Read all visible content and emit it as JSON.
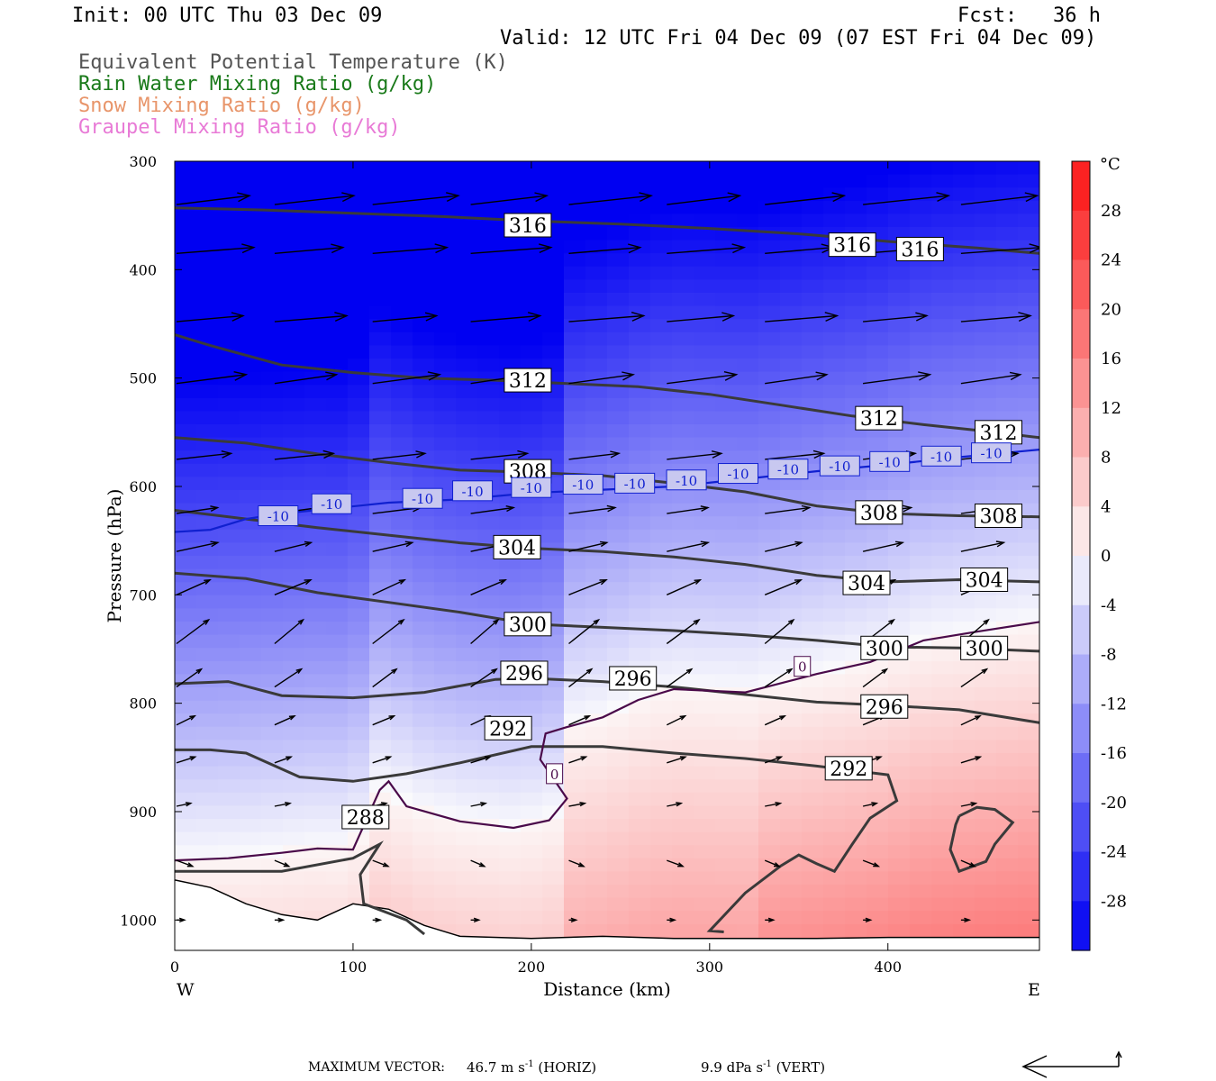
{
  "header": {
    "init": "Init: 00 UTC Thu 03 Dec 09",
    "fcst": "Fcst:   36 h",
    "valid": "Valid: 12 UTC Fri 04 Dec 09 (07 EST Fri 04 Dec 09)",
    "fields": [
      {
        "label": "Equivalent Potential Temperature (K)",
        "color": "#555555"
      },
      {
        "label": "Rain Water Mixing Ratio (g/kg)",
        "color": "#1a7a1a"
      },
      {
        "label": "Snow Mixing Ratio (g/kg)",
        "color": "#e8956a"
      },
      {
        "label": "Graupel Mixing Ratio (g/kg)",
        "color": "#e87ad6"
      }
    ]
  },
  "chart_data": {
    "type": "heatmap",
    "xlabel": "Distance (km)",
    "ylabel": "Pressure (hPa)",
    "xlim": [
      0,
      485
    ],
    "ylim": [
      1028,
      300
    ],
    "x_ticks": [
      0,
      100,
      200,
      300,
      400
    ],
    "y_ticks": [
      300,
      400,
      500,
      600,
      700,
      800,
      900,
      1000
    ],
    "x_end_labels": {
      "left": "W",
      "right": "E"
    },
    "colorbar": {
      "unit": "°C",
      "range": [
        -32,
        32
      ],
      "ticks": [
        28,
        24,
        20,
        16,
        12,
        8,
        4,
        0,
        -4,
        -8,
        -12,
        -16,
        -20,
        -24,
        -28
      ]
    },
    "theta_e_contours": [
      {
        "label": "316",
        "points": [
          [
            0,
            343
          ],
          [
            50,
            345
          ],
          [
            100,
            348
          ],
          [
            150,
            351
          ],
          [
            200,
            355
          ],
          [
            250,
            358
          ],
          [
            300,
            362
          ],
          [
            350,
            367
          ],
          [
            400,
            374
          ],
          [
            450,
            380
          ],
          [
            485,
            385
          ]
        ],
        "labels": [
          [
            198,
            359
          ],
          [
            380,
            377
          ],
          [
            418,
            381
          ]
        ]
      },
      {
        "label": "312",
        "points": [
          [
            0,
            460
          ],
          [
            20,
            470
          ],
          [
            60,
            488
          ],
          [
            100,
            495
          ],
          [
            140,
            500
          ],
          [
            180,
            502
          ],
          [
            220,
            505
          ],
          [
            260,
            508
          ],
          [
            300,
            515
          ],
          [
            340,
            525
          ],
          [
            380,
            535
          ],
          [
            420,
            543
          ],
          [
            460,
            550
          ],
          [
            485,
            555
          ]
        ],
        "labels": [
          [
            198,
            502
          ],
          [
            395,
            537
          ],
          [
            462,
            550
          ]
        ]
      },
      {
        "label": "308",
        "points": [
          [
            0,
            555
          ],
          [
            40,
            560
          ],
          [
            80,
            570
          ],
          [
            120,
            578
          ],
          [
            160,
            585
          ],
          [
            200,
            587
          ],
          [
            240,
            590
          ],
          [
            280,
            597
          ],
          [
            320,
            605
          ],
          [
            360,
            618
          ],
          [
            400,
            625
          ],
          [
            440,
            627
          ],
          [
            485,
            628
          ]
        ],
        "labels": [
          [
            198,
            586
          ],
          [
            395,
            624
          ],
          [
            462,
            627
          ]
        ]
      },
      {
        "label": "304",
        "points": [
          [
            0,
            622
          ],
          [
            40,
            630
          ],
          [
            80,
            638
          ],
          [
            120,
            645
          ],
          [
            160,
            652
          ],
          [
            200,
            657
          ],
          [
            240,
            660
          ],
          [
            280,
            665
          ],
          [
            320,
            672
          ],
          [
            360,
            682
          ],
          [
            400,
            688
          ],
          [
            440,
            686
          ],
          [
            485,
            688
          ]
        ],
        "labels": [
          [
            192,
            656
          ],
          [
            388,
            689
          ],
          [
            454,
            686
          ]
        ]
      },
      {
        "label": "300",
        "points": [
          [
            0,
            680
          ],
          [
            40,
            685
          ],
          [
            80,
            698
          ],
          [
            120,
            707
          ],
          [
            160,
            716
          ],
          [
            200,
            727
          ],
          [
            240,
            730
          ],
          [
            280,
            733
          ],
          [
            320,
            737
          ],
          [
            360,
            742
          ],
          [
            400,
            748
          ],
          [
            440,
            749
          ],
          [
            485,
            752
          ]
        ],
        "labels": [
          [
            198,
            727
          ],
          [
            398,
            749
          ],
          [
            454,
            749
          ]
        ]
      },
      {
        "label": "296",
        "points": [
          [
            0,
            782
          ],
          [
            30,
            780
          ],
          [
            60,
            793
          ],
          [
            100,
            795
          ],
          [
            140,
            790
          ],
          [
            180,
            778
          ],
          [
            200,
            777
          ],
          [
            240,
            780
          ],
          [
            280,
            785
          ],
          [
            320,
            792
          ],
          [
            360,
            799
          ],
          [
            400,
            802
          ],
          [
            440,
            806
          ],
          [
            485,
            818
          ]
        ],
        "labels": [
          [
            196,
            772
          ],
          [
            257,
            777
          ],
          [
            398,
            803
          ]
        ]
      },
      {
        "label": "292",
        "points": [
          [
            0,
            843
          ],
          [
            20,
            843
          ],
          [
            40,
            846
          ],
          [
            70,
            868
          ],
          [
            100,
            872
          ],
          [
            130,
            865
          ],
          [
            160,
            855
          ],
          [
            200,
            840
          ],
          [
            240,
            840
          ],
          [
            280,
            846
          ],
          [
            320,
            851
          ],
          [
            360,
            858
          ],
          [
            400,
            866
          ],
          [
            405,
            890
          ],
          [
            390,
            906
          ],
          [
            380,
            930
          ],
          [
            370,
            955
          ],
          [
            360,
            948
          ],
          [
            350,
            940
          ],
          [
            340,
            950
          ],
          [
            320,
            975
          ],
          [
            300,
            1010
          ],
          [
            308,
            1011
          ]
        ],
        "labels": [
          [
            187,
            823
          ],
          [
            378,
            860
          ]
        ]
      },
      {
        "label": "288",
        "points": [
          [
            0,
            955
          ],
          [
            60,
            955
          ],
          [
            100,
            943
          ],
          [
            115,
            930
          ],
          [
            104,
            958
          ],
          [
            106,
            985
          ],
          [
            130,
            1000
          ],
          [
            140,
            1013
          ]
        ],
        "labels": [
          [
            107,
            905
          ]
        ]
      },
      {
        "label": "",
        "points": [
          [
            440,
            904
          ],
          [
            450,
            896
          ],
          [
            460,
            898
          ],
          [
            470,
            910
          ],
          [
            460,
            930
          ],
          [
            455,
            946
          ],
          [
            440,
            955
          ],
          [
            435,
            935
          ],
          [
            438,
            912
          ],
          [
            440,
            904
          ]
        ],
        "labels": []
      }
    ],
    "zero_isotherm": {
      "label": "0",
      "points": [
        [
          0,
          945
        ],
        [
          30,
          943
        ],
        [
          60,
          938
        ],
        [
          80,
          934
        ],
        [
          100,
          935
        ],
        [
          115,
          880
        ],
        [
          120,
          872
        ],
        [
          130,
          895
        ],
        [
          160,
          909
        ],
        [
          190,
          915
        ],
        [
          210,
          908
        ],
        [
          220,
          888
        ],
        [
          205,
          852
        ],
        [
          208,
          828
        ],
        [
          220,
          822
        ],
        [
          240,
          813
        ],
        [
          260,
          797
        ],
        [
          280,
          787
        ],
        [
          320,
          790
        ],
        [
          360,
          773
        ],
        [
          390,
          762
        ],
        [
          420,
          742
        ],
        [
          450,
          734
        ],
        [
          485,
          725
        ]
      ],
      "labels": [
        [
          213,
          865
        ],
        [
          352,
          766
        ]
      ]
    },
    "minus10_isotherm": {
      "label": "-10",
      "points": [
        [
          0,
          642
        ],
        [
          20,
          640
        ],
        [
          40,
          630
        ],
        [
          60,
          625
        ],
        [
          90,
          620
        ],
        [
          120,
          615
        ],
        [
          160,
          612
        ],
        [
          200,
          606
        ],
        [
          240,
          603
        ],
        [
          280,
          600
        ],
        [
          320,
          593
        ],
        [
          360,
          586
        ],
        [
          400,
          580
        ],
        [
          440,
          573
        ],
        [
          485,
          566
        ]
      ],
      "labels": [
        [
          58,
          627
        ],
        [
          88,
          616
        ],
        [
          139,
          611
        ],
        [
          167,
          604
        ],
        [
          200,
          601
        ],
        [
          229,
          598
        ],
        [
          258,
          597
        ],
        [
          287,
          594
        ],
        [
          316,
          588
        ],
        [
          344,
          584
        ],
        [
          373,
          581
        ],
        [
          401,
          577
        ],
        [
          430,
          572
        ],
        [
          458,
          569
        ]
      ]
    },
    "terrain_line": [
      [
        0,
        963
      ],
      [
        20,
        970
      ],
      [
        40,
        985
      ],
      [
        60,
        995
      ],
      [
        80,
        1000
      ],
      [
        100,
        985
      ],
      [
        120,
        990
      ],
      [
        140,
        1005
      ],
      [
        160,
        1015
      ],
      [
        200,
        1017
      ],
      [
        240,
        1015
      ],
      [
        280,
        1017
      ],
      [
        320,
        1017
      ],
      [
        360,
        1017
      ],
      [
        400,
        1016
      ],
      [
        440,
        1016
      ],
      [
        485,
        1016
      ]
    ],
    "vectors": {
      "max_horiz": "46.7",
      "max_vert": "9.9",
      "rows": [
        {
          "p": 340,
          "u": 0.8,
          "w": 0.03
        },
        {
          "p": 385,
          "u": 0.75,
          "w": 0.02
        },
        {
          "p": 448,
          "u": 0.7,
          "w": 0.02
        },
        {
          "p": 505,
          "u": 0.65,
          "w": 0.03
        },
        {
          "p": 575,
          "u": 0.55,
          "w": 0.02
        },
        {
          "p": 625,
          "u": 0.45,
          "w": 0.02
        },
        {
          "p": 660,
          "u": 0.4,
          "w": 0.03
        },
        {
          "p": 700,
          "u": 0.35,
          "w": 0.05
        },
        {
          "p": 745,
          "u": 0.3,
          "w": 0.08
        },
        {
          "p": 785,
          "u": 0.25,
          "w": 0.06
        },
        {
          "p": 820,
          "u": 0.2,
          "w": 0.03
        },
        {
          "p": 855,
          "u": 0.18,
          "w": 0.02
        },
        {
          "p": 895,
          "u": 0.15,
          "w": 0.01
        },
        {
          "p": 945,
          "u": 0.15,
          "w": -0.02
        },
        {
          "p": 1000,
          "u": 0.08,
          "w": 0.0
        }
      ]
    }
  },
  "footer": {
    "max_vector_label": "MAXIMUM VECTOR:",
    "horiz_value": "46.7 m s",
    "horiz_tag": " (HORIZ)",
    "vert_value": "9.9 dPa s",
    "vert_tag": " (VERT)",
    "unit_exp": "-1"
  }
}
